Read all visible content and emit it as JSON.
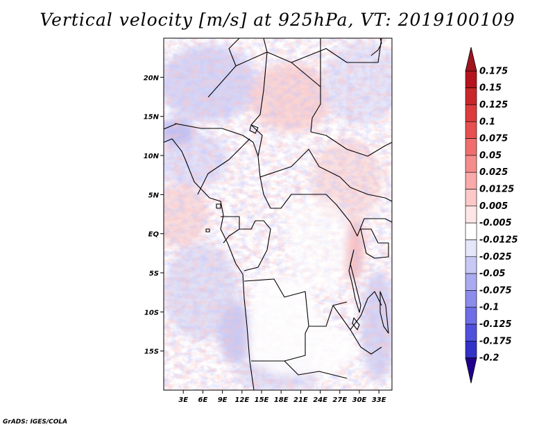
{
  "title": "Vertical velocity [m/s] at 925hPa, VT: 2019100109",
  "credit": "GrADS: IGES/COLA",
  "chart_data": {
    "type": "heatmap",
    "variable": "Vertical velocity",
    "units": "m/s",
    "level": "925hPa",
    "valid_time": "2019100109",
    "lon_range": [
      0,
      35
    ],
    "lat_range": [
      -20,
      25
    ],
    "y_ticks": [
      {
        "lat": 20,
        "label": "20N"
      },
      {
        "lat": 15,
        "label": "15N"
      },
      {
        "lat": 10,
        "label": "10N"
      },
      {
        "lat": 5,
        "label": "5N"
      },
      {
        "lat": 0,
        "label": "EQ"
      },
      {
        "lat": -5,
        "label": "5S"
      },
      {
        "lat": -10,
        "label": "10S"
      },
      {
        "lat": -15,
        "label": "15S"
      }
    ],
    "x_ticks": [
      {
        "lon": 3,
        "label": "3E"
      },
      {
        "lon": 6,
        "label": "6E"
      },
      {
        "lon": 9,
        "label": "9E"
      },
      {
        "lon": 12,
        "label": "12E"
      },
      {
        "lon": 15,
        "label": "15E"
      },
      {
        "lon": 18,
        "label": "18E"
      },
      {
        "lon": 21,
        "label": "21E"
      },
      {
        "lon": 24,
        "label": "24E"
      },
      {
        "lon": 27,
        "label": "27E"
      },
      {
        "lon": 30,
        "label": "30E"
      },
      {
        "lon": 33,
        "label": "33E"
      }
    ],
    "colorbar": {
      "max_color": "#a0141e",
      "min_color": "#20008c",
      "levels": [
        {
          "label": "0.175",
          "color": "#b4141e"
        },
        {
          "label": "0.15",
          "color": "#c8282a"
        },
        {
          "label": "0.125",
          "color": "#dc3c3c"
        },
        {
          "label": "0.1",
          "color": "#e65050"
        },
        {
          "label": "0.075",
          "color": "#f06e6e"
        },
        {
          "label": "0.05",
          "color": "#f58c8c"
        },
        {
          "label": "0.025",
          "color": "#faaaaa"
        },
        {
          "label": "0.0125",
          "color": "#fcc8c8"
        },
        {
          "label": "0.005",
          "color": "#fee6e6"
        },
        {
          "label": "-0.005",
          "color": "#ffffff"
        },
        {
          "label": "-0.0125",
          "color": "#e6e6fa"
        },
        {
          "label": "-0.025",
          "color": "#c8c8f5"
        },
        {
          "label": "-0.05",
          "color": "#aaaaf0"
        },
        {
          "label": "-0.075",
          "color": "#8c8ceb"
        },
        {
          "label": "-0.1",
          "color": "#6e6ee6"
        },
        {
          "label": "-0.125",
          "color": "#5050dc"
        },
        {
          "label": "-0.175",
          "color": "#3232c8"
        },
        {
          "label": "-0.2",
          "color": "#1e14b4"
        }
      ]
    }
  }
}
